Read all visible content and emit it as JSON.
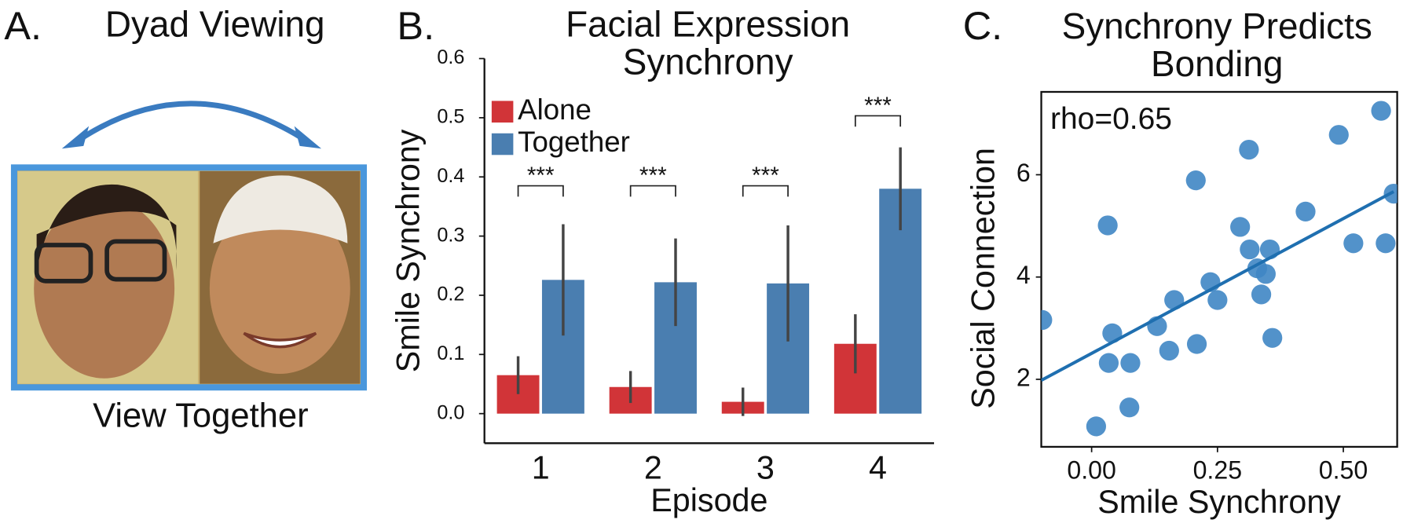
{
  "panel_a": {
    "label": "A.",
    "title": "Dyad Viewing",
    "caption": "View Together"
  },
  "chart_data": [
    {
      "type": "bar",
      "label": "B.",
      "title": [
        "Facial Expression",
        "Synchrony"
      ],
      "y_label": "Smile Synchrony",
      "x_label": "Episode",
      "categories": [
        "1",
        "2",
        "3",
        "4"
      ],
      "series": [
        {
          "name": "Alone",
          "color": "#d13438",
          "values": [
            0.065,
            0.045,
            0.02,
            0.118
          ],
          "errors": [
            0.032,
            0.027,
            0.024,
            0.05
          ]
        },
        {
          "name": "Together",
          "color": "#4a7eb0",
          "values": [
            0.226,
            0.222,
            0.22,
            0.38
          ],
          "errors": [
            0.094,
            0.074,
            0.098,
            0.07
          ]
        }
      ],
      "annotations": [
        "***",
        "***",
        "***",
        "***"
      ],
      "ylim": [
        -0.05,
        0.6
      ],
      "yticks": [
        {
          "value": 0,
          "label": "0.0"
        },
        {
          "value": 0.1,
          "label": "0.1"
        },
        {
          "value": 0.2,
          "label": "0.2"
        },
        {
          "value": 0.3,
          "label": "0.3"
        },
        {
          "value": 0.4,
          "label": "0.4"
        },
        {
          "value": 0.5,
          "label": "0.5"
        },
        {
          "value": 0.6,
          "label": "0.6"
        }
      ],
      "legend": "upper left",
      "grid": false
    },
    {
      "type": "scatter",
      "label": "C.",
      "title": [
        "Synchrony Predicts",
        "Bonding"
      ],
      "x_label": "Smile Synchrony",
      "y_label": "Social Connection",
      "annotation": "rho=0.65",
      "color": "#3f86c4",
      "line_color": "#1f6fb0",
      "x": [
        -0.098,
        0.032,
        0.041,
        0.034,
        0.077,
        0.075,
        0.009,
        0.13,
        0.164,
        0.154,
        0.207,
        0.209,
        0.236,
        0.25,
        0.295,
        0.3125,
        0.314,
        0.329,
        0.346,
        0.337,
        0.354,
        0.359,
        0.425,
        0.491,
        0.52,
        0.584,
        0.575,
        0.6
      ],
      "y": [
        3.16,
        5.01,
        2.9,
        2.32,
        2.32,
        1.45,
        1.08,
        3.04,
        3.55,
        2.56,
        5.89,
        2.69,
        3.9,
        3.55,
        4.98,
        6.49,
        4.54,
        4.17,
        4.06,
        3.66,
        4.54,
        2.81,
        5.28,
        6.78,
        4.66,
        4.66,
        7.25,
        5.63
      ],
      "fit_line": {
        "x": [
          -0.1,
          0.6
        ],
        "y": [
          1.98,
          5.67
        ]
      },
      "xlim": [
        -0.1,
        0.607
      ],
      "ylim": [
        0.68,
        7.62
      ],
      "xticks": [
        {
          "value": 0,
          "label": "0.00"
        },
        {
          "value": 0.25,
          "label": "0.25"
        },
        {
          "value": 0.5,
          "label": "0.50"
        }
      ],
      "yticks": [
        2,
        4,
        6
      ],
      "grid": false
    }
  ]
}
